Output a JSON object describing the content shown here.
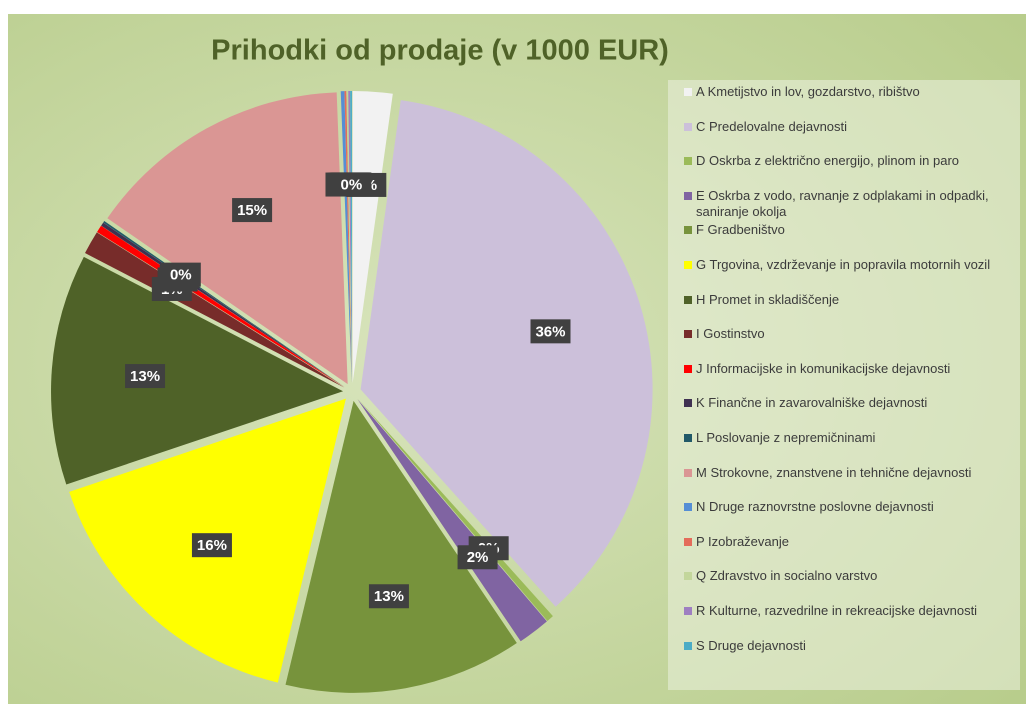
{
  "chart_data": {
    "type": "pie",
    "title": "Prihodki od prodaje (v 1000 EUR)",
    "categories": [
      "A Kmetijstvo in lov, gozdarstvo, ribištvo",
      "C Predelovalne dejavnosti",
      "D Oskrba z električno energijo, plinom in paro",
      "E Oskrba z vodo, ravnanje z odplakami in odpadki, saniranje okolja",
      "F Gradbeništvo",
      "G Trgovina, vzdrževanje in popravila motornih vozil",
      "H Promet in skladiščenje",
      "I Gostinstvo",
      "J Informacijske in komunikacijske dejavnosti",
      "K Finančne in zavarovalniške dejavnosti",
      "L Poslovanje z nepremičninami",
      "M Strokovne, znanstvene in tehnične dejavnosti",
      "N Druge raznovrstne poslovne dejavnosti",
      "P Izobraževanje",
      "Q Zdravstvo in socialno varstvo",
      "R Kulturne, razvedrilne in rekreacijske dejavnosti",
      "S Druge dejavnosti"
    ],
    "values": [
      2.2,
      36.2,
      0.4,
      1.8,
      13.2,
      16.1,
      12.8,
      1.3,
      0.4,
      0.2,
      0.1,
      14.8,
      0.2,
      0.1,
      0.1,
      0.1,
      0.1
    ],
    "value_labels": [
      "2%",
      "36%",
      "0%",
      "2%",
      "13%",
      "16%",
      "13%",
      "1%",
      "0%",
      "0%",
      "0%",
      "15%",
      "0%",
      "0%",
      "0%",
      "0%",
      "0%"
    ],
    "colors": [
      "#f2f2f2",
      "#ccc0da",
      "#9bbb59",
      "#8064a2",
      "#77933c",
      "#ffff00",
      "#4f6228",
      "#772c2a",
      "#ff0000",
      "#3f3151",
      "#215968",
      "#da9694",
      "#558ed5",
      "#e46c5a",
      "#c3d69b",
      "#9e7fc1",
      "#4bacc6"
    ],
    "legend": "right"
  }
}
